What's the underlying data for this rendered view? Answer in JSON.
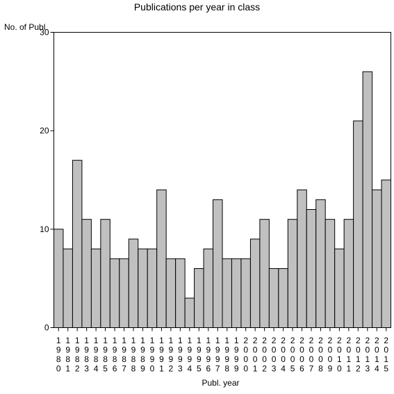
{
  "chart_data": {
    "type": "bar",
    "title": "Publications per year in class",
    "ylabel": "No. of Publ.",
    "xlabel": "Publ. year",
    "ylim": [
      0,
      30
    ],
    "yticks": [
      0,
      10,
      20,
      30
    ],
    "grid": false,
    "bar_color": "#c0c0c0",
    "categories": [
      "1980",
      "1981",
      "1982",
      "1983",
      "1984",
      "1985",
      "1986",
      "1987",
      "1988",
      "1989",
      "1990",
      "1991",
      "1992",
      "1993",
      "1994",
      "1995",
      "1996",
      "1997",
      "1998",
      "1999",
      "2000",
      "2001",
      "2002",
      "2003",
      "2004",
      "2005",
      "2006",
      "2007",
      "2008",
      "2009",
      "2010",
      "2011",
      "2012",
      "2013",
      "2014",
      "2015"
    ],
    "values": [
      10,
      8,
      17,
      11,
      8,
      11,
      7,
      7,
      9,
      8,
      8,
      14,
      7,
      7,
      3,
      6,
      8,
      13,
      7,
      7,
      7,
      9,
      11,
      6,
      6,
      11,
      14,
      12,
      13,
      11,
      8,
      11,
      21,
      26,
      14,
      15
    ]
  }
}
